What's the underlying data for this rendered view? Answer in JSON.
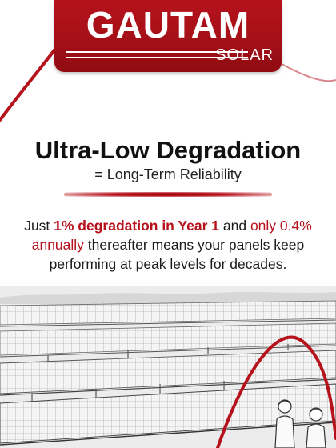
{
  "logo": {
    "brand": "GAUTAM",
    "sub": "SOLAR"
  },
  "headline": {
    "title": "Ultra-Low Degradation",
    "subtitle": "= Long-Term Reliability"
  },
  "body": {
    "part1": "Just ",
    "highlight1": "1% degradation in Year 1",
    "part2": " and ",
    "highlight2": "only 0.4% annually",
    "part3": " thereafter means your panels keep performing at peak levels for decades."
  },
  "colors": {
    "brand_red": "#b5121b",
    "text_dark": "#111111"
  },
  "illustration": {
    "subject": "solar-panel-field-sketch-with-workers"
  }
}
